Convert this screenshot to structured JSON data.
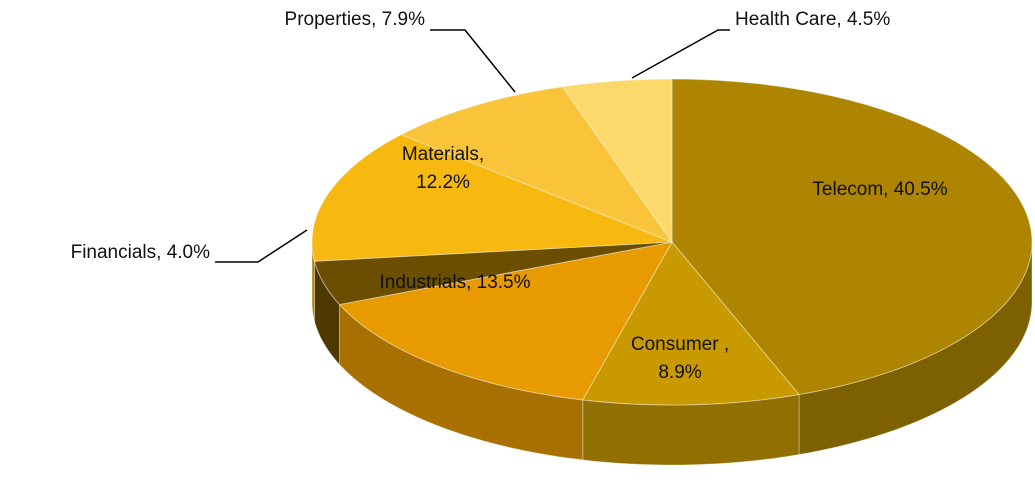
{
  "chart_data": {
    "type": "pie3d",
    "value_labels": [
      "Telecom, 40.5%",
      "Consumer ,\n8.9%",
      "Industrials, 13.5%",
      "Financials, 4.0%",
      "Materials,\n12.2%",
      "Properties, 7.9%",
      "Health Care, 4.5%"
    ],
    "values": [
      40.5,
      8.9,
      13.5,
      4.0,
      12.2,
      7.9,
      4.5
    ],
    "colors": [
      "#ad8500",
      "#c99a00",
      "#e89b00",
      "#6b4e00",
      "#f7b90f",
      "#f9c43a",
      "#fcd96a"
    ]
  }
}
